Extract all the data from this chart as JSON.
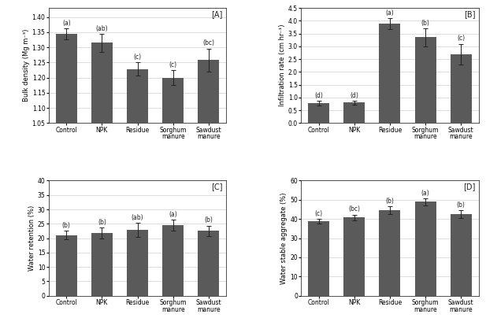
{
  "categories": [
    "Control",
    "NPK",
    "Residue",
    "Sorghum\nmanure",
    "Sawdust\nmanure"
  ],
  "panel_A": {
    "label": "[A]",
    "ylabel": "Bulk density (Mg m⁻³)",
    "values": [
      1.345,
      1.315,
      1.228,
      1.2,
      1.258
    ],
    "errors": [
      0.018,
      0.03,
      0.022,
      0.025,
      0.038
    ],
    "ylim": [
      1.05,
      1.43
    ],
    "yticks": [
      1.05,
      1.1,
      1.15,
      1.2,
      1.25,
      1.3,
      1.35,
      1.4
    ],
    "letter_labels": [
      "(a)",
      "(ab)",
      "(c)",
      "(c)",
      "(bc)"
    ]
  },
  "panel_B": {
    "label": "[B]",
    "ylabel": "Infiltration rate (cm hr⁻¹)",
    "values": [
      0.78,
      0.8,
      3.88,
      3.35,
      2.7
    ],
    "errors": [
      0.1,
      0.08,
      0.22,
      0.35,
      0.4
    ],
    "ylim": [
      0.0,
      4.5
    ],
    "yticks": [
      0.0,
      0.5,
      1.0,
      1.5,
      2.0,
      2.5,
      3.0,
      3.5,
      4.0,
      4.5
    ],
    "letter_labels": [
      "(d)",
      "(d)",
      "(a)",
      "(b)",
      "(c)"
    ]
  },
  "panel_C": {
    "label": "[C]",
    "ylabel": "Water retention (%)",
    "values": [
      21.0,
      21.8,
      22.8,
      24.5,
      22.6
    ],
    "errors": [
      1.5,
      1.8,
      2.5,
      2.0,
      1.8
    ],
    "ylim": [
      0,
      40
    ],
    "yticks": [
      0,
      5,
      10,
      15,
      20,
      25,
      30,
      35,
      40
    ],
    "letter_labels": [
      "(b)",
      "(b)",
      "(ab)",
      "(a)",
      "(b)"
    ]
  },
  "panel_D": {
    "label": "[D]",
    "ylabel": "Water stable aggregate (%)",
    "values": [
      39.0,
      40.8,
      44.5,
      49.0,
      42.5
    ],
    "errors": [
      1.2,
      1.5,
      2.0,
      1.8,
      2.0
    ],
    "ylim": [
      0,
      60
    ],
    "yticks": [
      0,
      10,
      20,
      30,
      40,
      50,
      60
    ],
    "letter_labels": [
      "(c)",
      "(bc)",
      "(b)",
      "(a)",
      "(b)"
    ]
  },
  "bar_color": "#5a5a5a",
  "bar_width": 0.6,
  "figure_bg": "#ffffff",
  "axes_bg": "#ffffff",
  "grid_color": "#d0d0d0",
  "error_color": "#222222",
  "tick_fontsize": 5.5,
  "ylabel_fontsize": 6.0,
  "letter_fontsize": 5.5,
  "panel_label_fontsize": 7.0
}
